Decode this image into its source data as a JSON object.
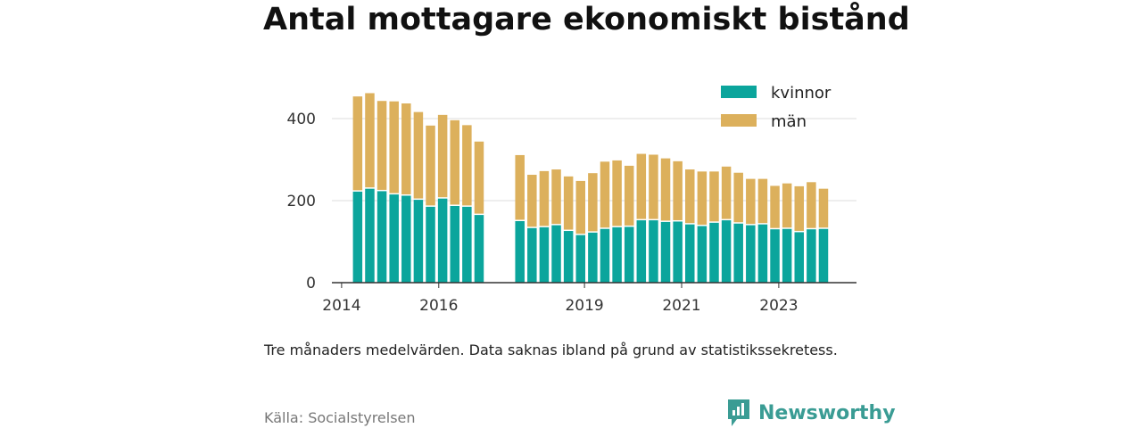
{
  "title": "Antal mottagare ekonomiskt bistånd",
  "caption": "Tre månaders medelvärden. Data saknas ibland på grund av statistikssekretess.",
  "source": "Källa: Socialstyrelsen",
  "brand": "Newsworthy",
  "colors": {
    "kvinnor": "#0ba59c",
    "man": "#dcb05c",
    "axis": "#333333",
    "grid": "#dddddd",
    "brand": "#3a9c94"
  },
  "chart_data": {
    "type": "bar",
    "stacked": true,
    "title": "Antal mottagare ekonomiskt bistånd",
    "xlabel": "",
    "ylabel": "",
    "ylim": [
      0,
      480
    ],
    "yticks": [
      0,
      200,
      400
    ],
    "x_range": [
      2013.8,
      2024.6
    ],
    "xticks": [
      2014,
      2016,
      2019,
      2021,
      2023
    ],
    "legend": {
      "position": "top-right",
      "entries": [
        "kvinnor",
        "män"
      ]
    },
    "x": [
      2014.33,
      2014.58,
      2014.83,
      2015.08,
      2015.33,
      2015.58,
      2015.83,
      2016.08,
      2016.33,
      2016.58,
      2016.83,
      2017.67,
      2017.92,
      2018.17,
      2018.42,
      2018.67,
      2018.92,
      2019.17,
      2019.42,
      2019.67,
      2019.92,
      2020.17,
      2020.42,
      2020.67,
      2020.92,
      2021.17,
      2021.42,
      2021.67,
      2021.92,
      2022.17,
      2022.42,
      2022.67,
      2022.92,
      2023.17,
      2023.42,
      2023.67,
      2023.92
    ],
    "series": [
      {
        "name": "kvinnor",
        "values": [
          222,
          229,
          223,
          215,
          212,
          202,
          185,
          205,
          187,
          185,
          165,
          150,
          133,
          135,
          140,
          126,
          116,
          122,
          131,
          135,
          136,
          152,
          152,
          148,
          149,
          142,
          138,
          146,
          152,
          144,
          140,
          142,
          130,
          131,
          123,
          130,
          131
        ]
      },
      {
        "name": "män",
        "values": [
          232,
          233,
          220,
          227,
          225,
          214,
          198,
          204,
          209,
          199,
          179,
          161,
          130,
          137,
          136,
          133,
          132,
          145,
          164,
          163,
          149,
          162,
          160,
          155,
          147,
          134,
          133,
          125,
          131,
          124,
          113,
          111,
          106,
          111,
          112,
          115,
          98
        ]
      }
    ]
  }
}
